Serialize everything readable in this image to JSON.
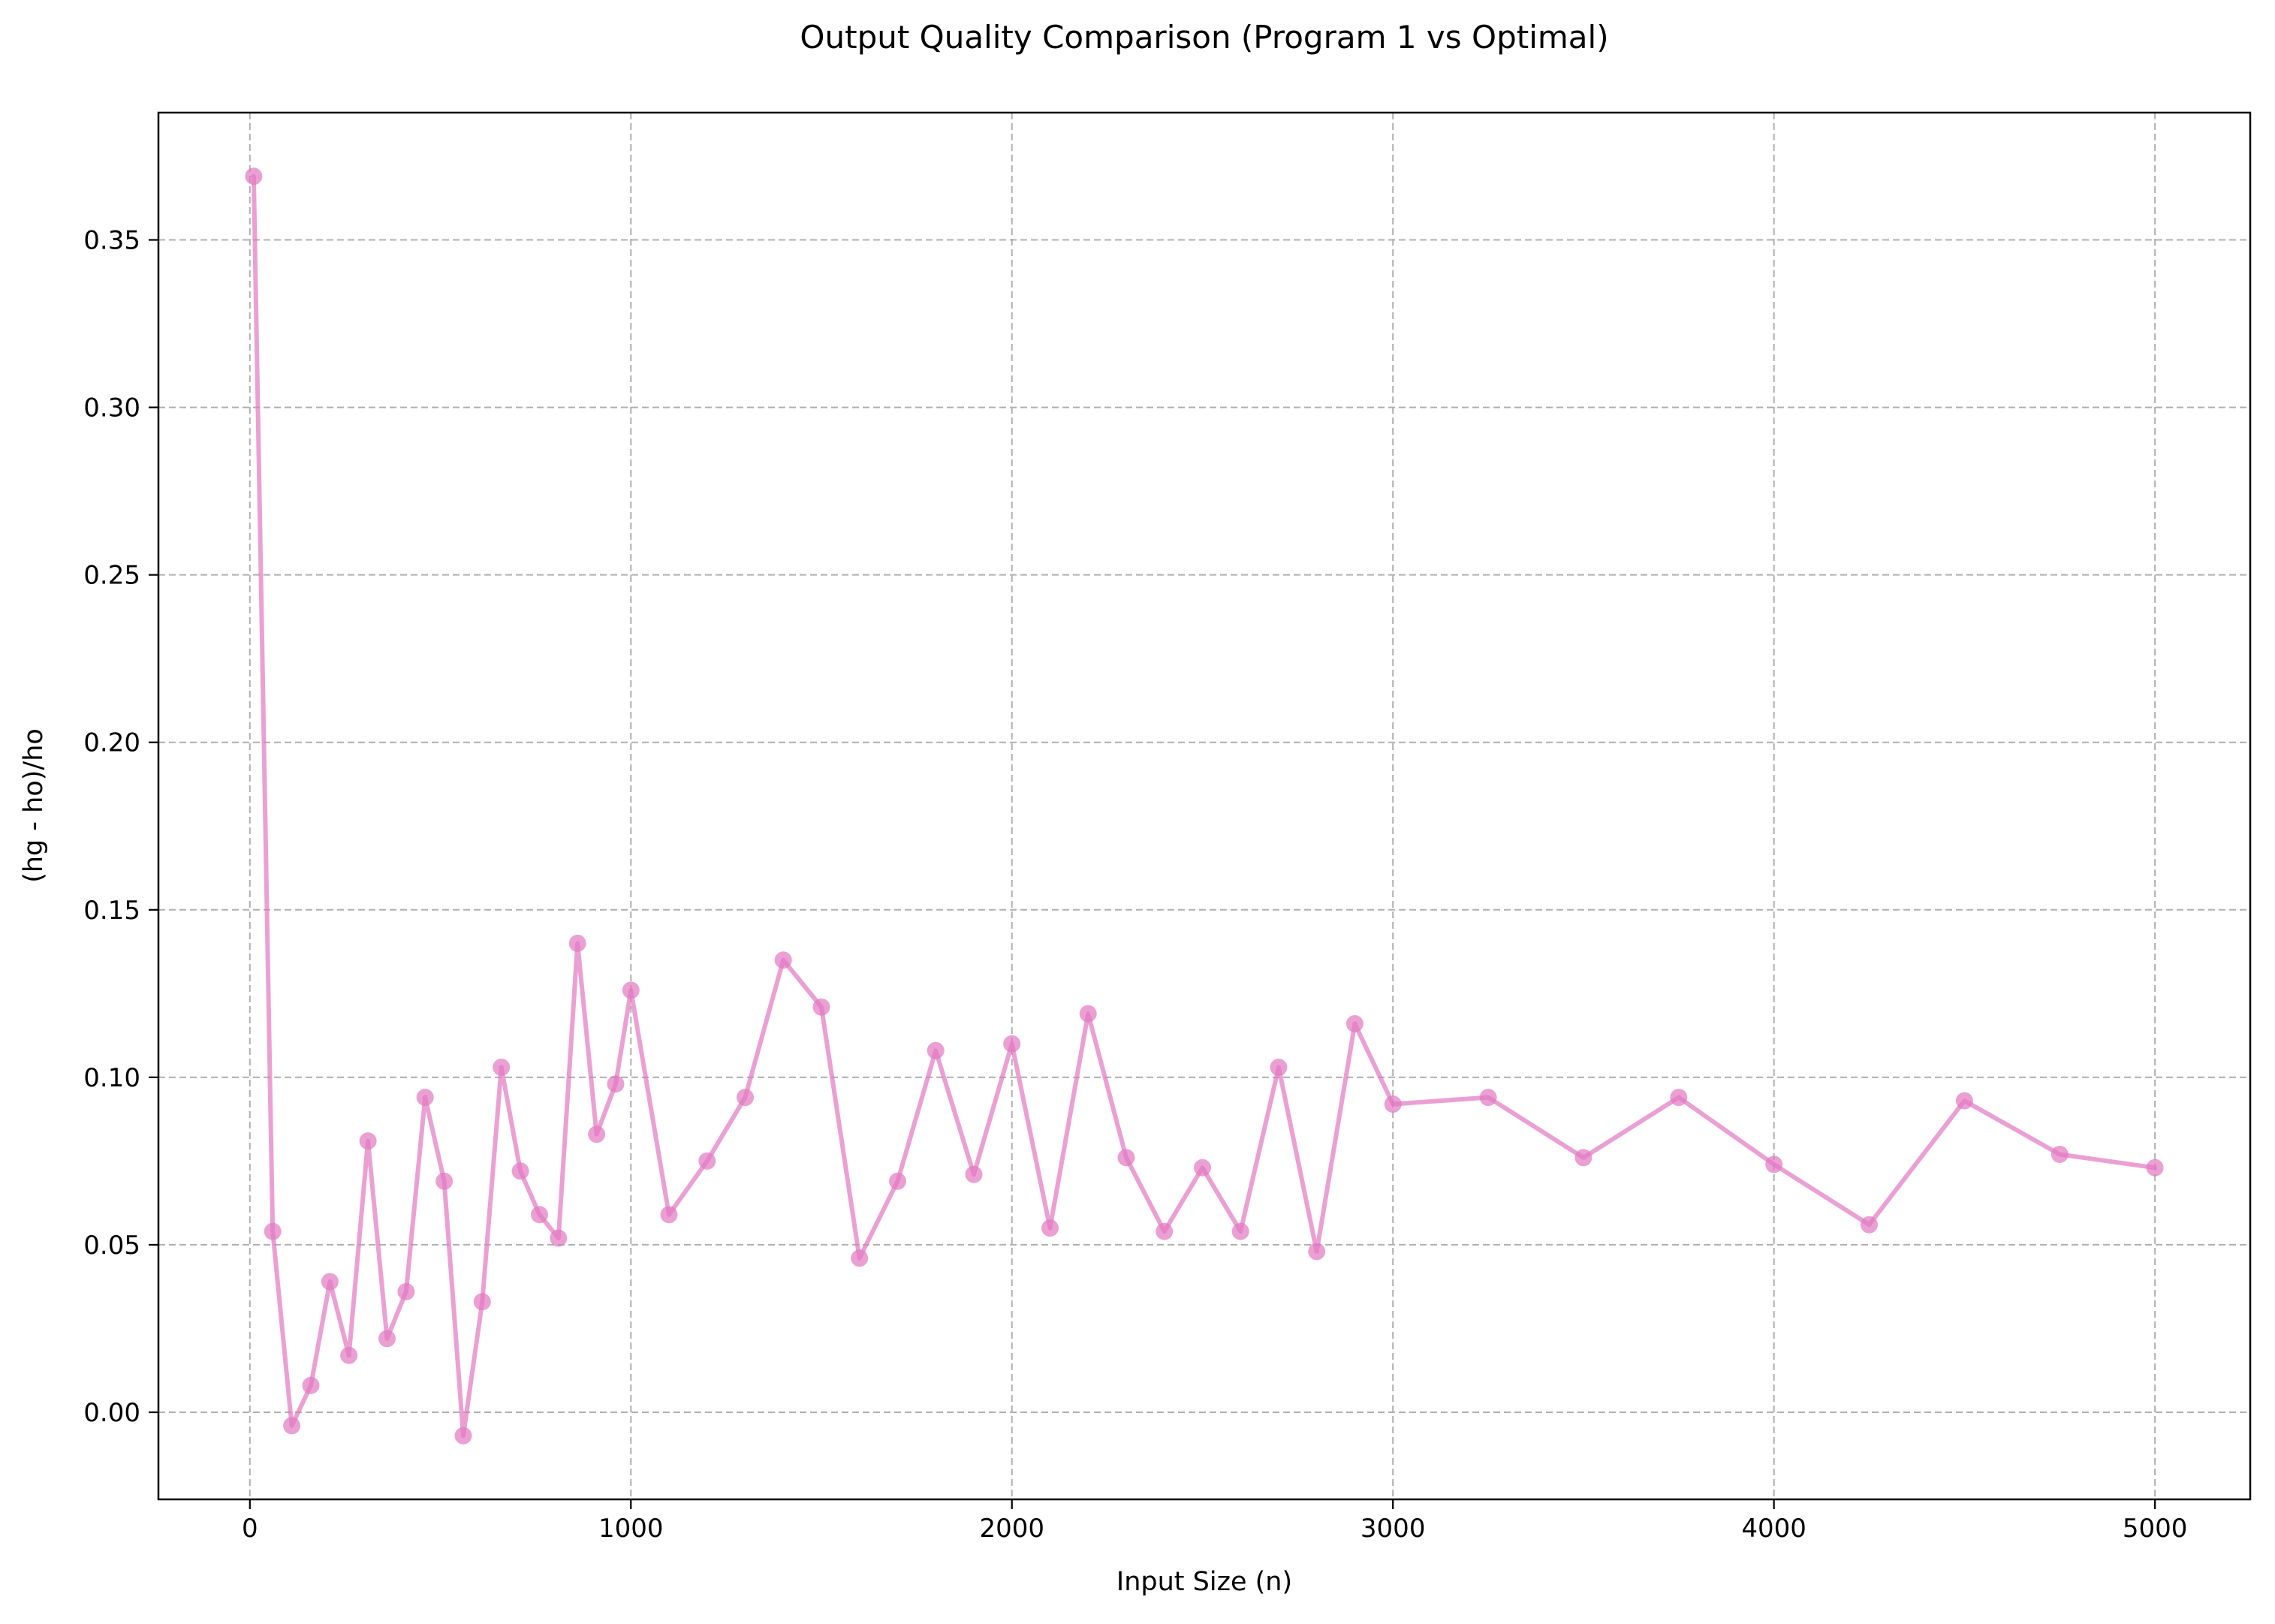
{
  "chart_data": {
    "type": "line",
    "title": "Output Quality Comparison (Program 1 vs Optimal)",
    "xlabel": "Input Size (n)",
    "ylabel": "(hg - ho)/ho",
    "xlim": [
      -240,
      5250
    ],
    "ylim": [
      -0.026,
      0.388
    ],
    "x_ticks": [
      0,
      1000,
      2000,
      3000,
      4000,
      5000
    ],
    "x_tick_labels": [
      "0",
      "1000",
      "2000",
      "3000",
      "4000",
      "5000"
    ],
    "y_ticks": [
      0.0,
      0.05,
      0.1,
      0.15,
      0.2,
      0.25,
      0.3,
      0.35
    ],
    "y_tick_labels": [
      "0.00",
      "0.05",
      "0.10",
      "0.15",
      "0.20",
      "0.25",
      "0.30",
      "0.35"
    ],
    "grid": true,
    "series_color": "#e377c2",
    "series": [
      {
        "x": [
          10,
          60,
          110,
          160,
          210,
          260,
          310,
          360,
          410,
          460,
          510,
          560,
          610,
          660,
          710,
          760,
          810,
          860,
          910,
          960,
          1000,
          1100,
          1200,
          1300,
          1400,
          1500,
          1600,
          1700,
          1800,
          1900,
          2000,
          2100,
          2200,
          2300,
          2400,
          2500,
          2600,
          2700,
          2800,
          2900,
          3000,
          3250,
          3500,
          3750,
          4000,
          4250,
          4500,
          4750,
          5000
        ],
        "y": [
          0.369,
          0.054,
          -0.004,
          0.008,
          0.039,
          0.017,
          0.081,
          0.022,
          0.036,
          0.094,
          0.069,
          -0.007,
          0.033,
          0.103,
          0.072,
          0.059,
          0.052,
          0.14,
          0.083,
          0.098,
          0.126,
          0.059,
          0.075,
          0.094,
          0.135,
          0.121,
          0.046,
          0.069,
          0.108,
          0.071,
          0.11,
          0.055,
          0.119,
          0.076,
          0.054,
          0.073,
          0.054,
          0.103,
          0.048,
          0.116,
          0.092,
          0.094,
          0.076,
          0.094,
          0.074,
          0.056,
          0.093,
          0.077,
          0.073
        ]
      }
    ]
  }
}
